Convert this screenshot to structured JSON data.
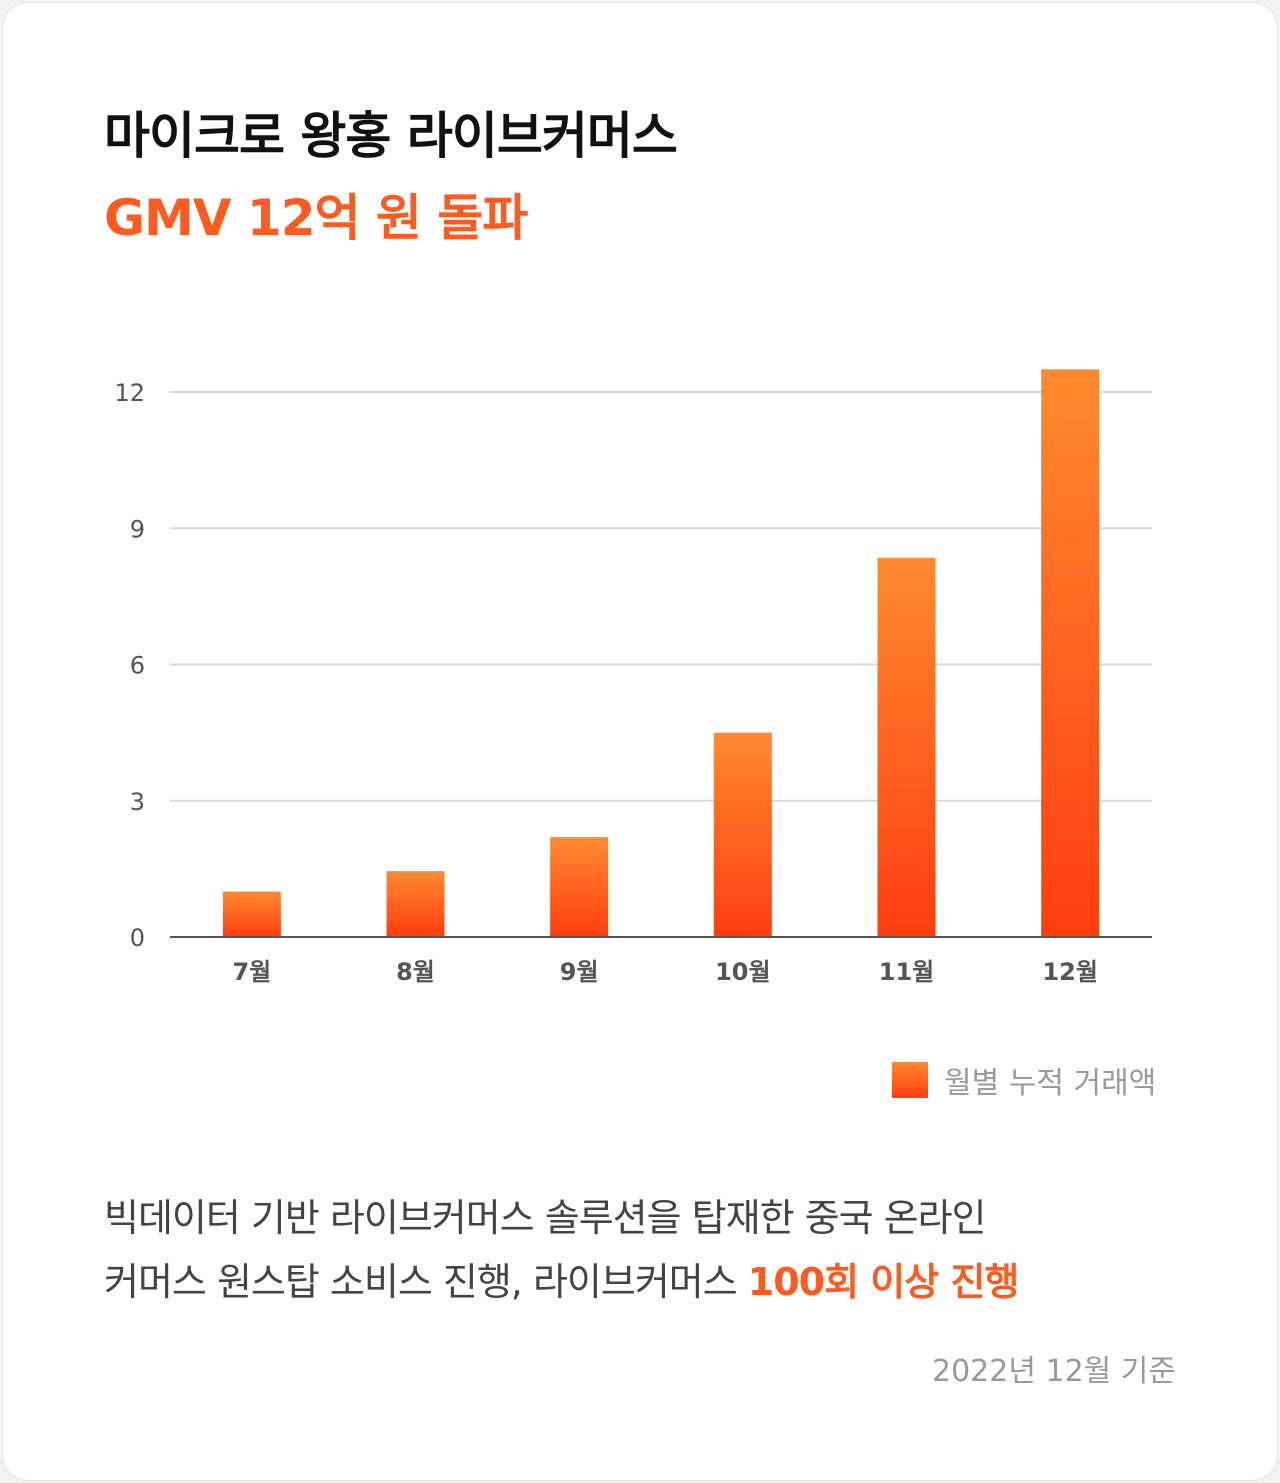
{
  "title_line1": "마이크로 왕홍 라이브커머스",
  "title_line2": "GMV 12억 원 돌파",
  "colors": {
    "accent": "#ff5a1f",
    "bar_top": "#ff8a30",
    "bar_bottom": "#ff3d10"
  },
  "chart_data": {
    "type": "bar",
    "categories": [
      "7월",
      "8월",
      "9월",
      "10월",
      "11월",
      "12월"
    ],
    "series": [
      {
        "name": "월별 누적 거래액",
        "values": [
          1.0,
          1.45,
          2.2,
          4.5,
          8.35,
          12.5
        ]
      }
    ],
    "yticks": [
      0,
      3,
      6,
      9,
      12
    ],
    "ylim": [
      0,
      12.8
    ],
    "grid": true,
    "legend": "bottom-right",
    "xlabel": "",
    "ylabel": ""
  },
  "legend_label": "월별 누적 거래액",
  "description": {
    "line1": "빅데이터 기반 라이브커머스 솔루션을 탑재한 중국 온라인",
    "line2_plain": "커머스 원스탑 소비스 진행, 라이브커머스 ",
    "line2_highlight": "100회 이상 진행"
  },
  "note": "2022년 12월 기준"
}
